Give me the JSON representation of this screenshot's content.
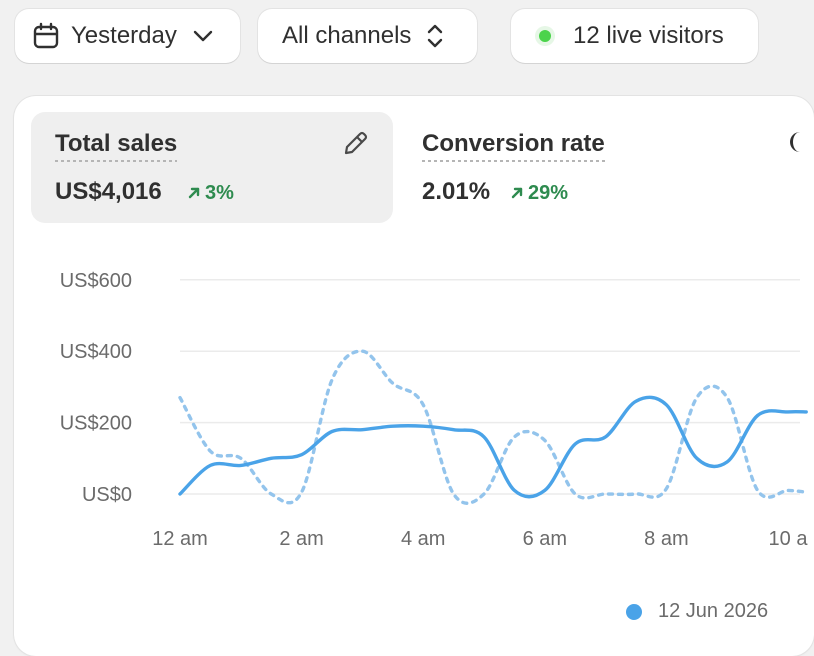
{
  "filters": {
    "date_label": "Yesterday",
    "channel_label": "All channels",
    "live_label": "12 live visitors"
  },
  "metrics": [
    {
      "title": "Total sales",
      "value": "US$4,016",
      "change": "3%"
    },
    {
      "title": "Conversion rate",
      "value": "2.01%",
      "change": "29%"
    }
  ],
  "colors": {
    "series_current": "#4aa3e8",
    "series_comparison": "#93c4ec",
    "positive_change": "#2e8b4f",
    "live_indicator": "#4bd34b"
  },
  "chart_data": {
    "type": "line",
    "y_ticks": [
      "US$600",
      "US$400",
      "US$200",
      "US$0"
    ],
    "x_ticks": [
      "12 am",
      "2 am",
      "4 am",
      "6 am",
      "8 am",
      "10 a"
    ],
    "ylim": [
      0,
      600
    ],
    "grid": true,
    "legend_position": "bottom-right",
    "x": [
      0,
      0.5,
      1,
      1.5,
      2,
      2.5,
      3,
      3.5,
      4,
      4.5,
      5,
      5.5,
      6,
      6.5,
      7,
      7.5,
      8,
      8.5,
      9,
      9.5,
      10,
      10.3
    ],
    "series": [
      {
        "name": "12 Jun 2026",
        "style": "solid",
        "values": [
          0,
          80,
          80,
          100,
          110,
          175,
          180,
          190,
          190,
          180,
          160,
          10,
          10,
          140,
          160,
          260,
          250,
          100,
          90,
          220,
          230,
          230
        ]
      },
      {
        "name": "",
        "style": "dashed",
        "values": [
          270,
          120,
          100,
          0,
          5,
          320,
          400,
          310,
          250,
          0,
          0,
          160,
          150,
          0,
          0,
          0,
          15,
          270,
          270,
          10,
          10,
          5
        ]
      }
    ]
  }
}
